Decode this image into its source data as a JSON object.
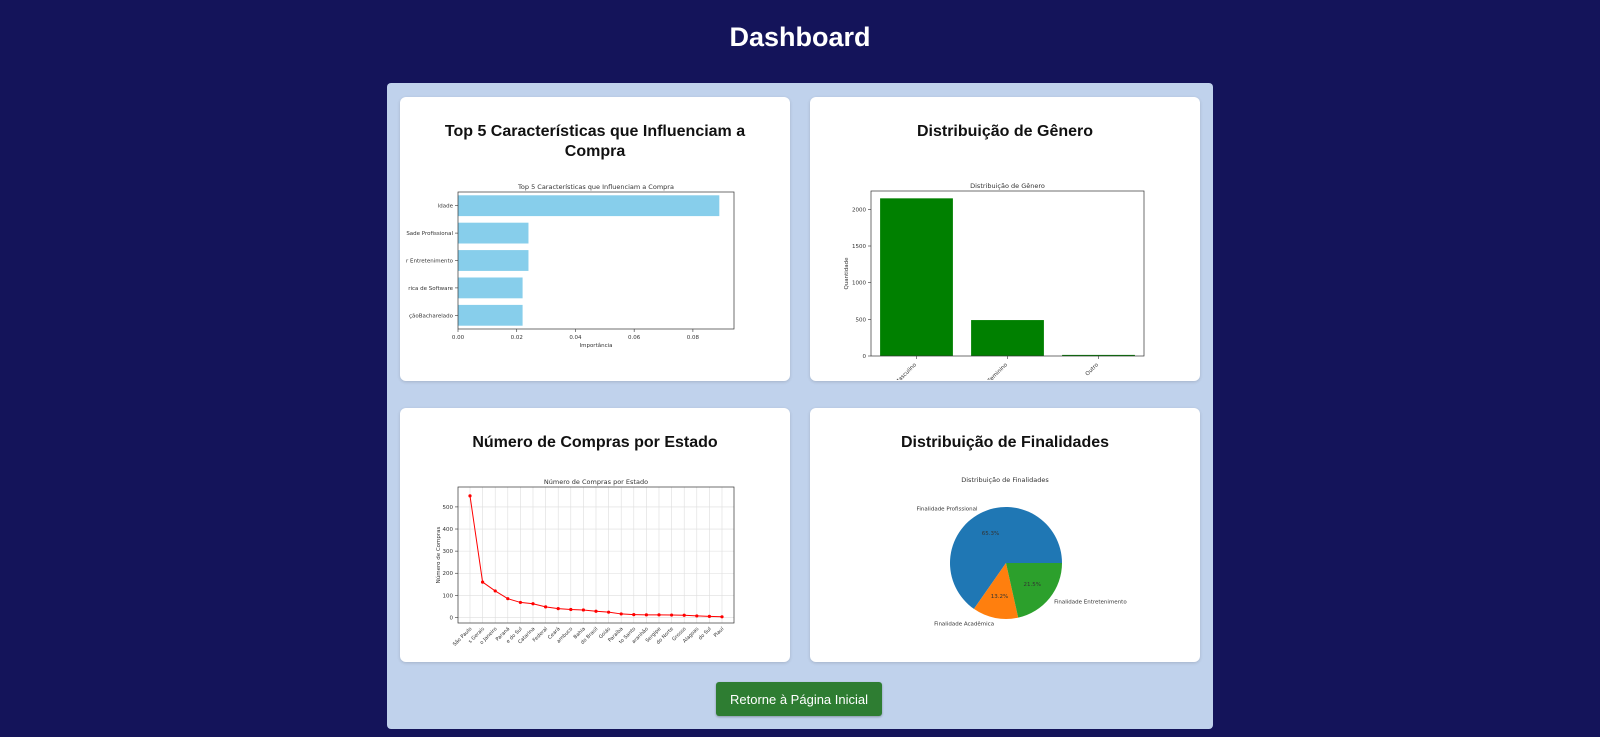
{
  "page": {
    "title": "Dashboard"
  },
  "cards": [
    {
      "title": "Top 5 Características que Influenciam a Compra"
    },
    {
      "title": "Distribuição de Gênero"
    },
    {
      "title": "Número de Compras por Estado"
    },
    {
      "title": "Distribuição de Finalidades"
    }
  ],
  "button": {
    "label": "Retorne à Página Inicial"
  },
  "colors": {
    "bar_blue": "#87ceeb",
    "bar_green": "#008000",
    "line_red": "#ff0000",
    "pie": [
      "#1f77b4",
      "#ff7f0e",
      "#2ca02c"
    ]
  },
  "chart_data": [
    {
      "type": "bar",
      "orientation": "horizontal",
      "title": "Top 5 Características que Influenciam a Compra",
      "xlabel": "Importância",
      "categories": [
        "idade",
        "Finalidade Profissional",
        "Finalidade Entretenimento",
        "Engenharia de Software",
        "Nível: Bacharelado"
      ],
      "category_labels_visible": [
        "ldade",
        "Sade Profissional",
        "r Entretenimento",
        "rica de Software",
        "çãoBacharelado"
      ],
      "values": [
        0.089,
        0.024,
        0.024,
        0.022,
        0.022
      ],
      "xlim": [
        0,
        0.094
      ],
      "xticks": [
        "0.00",
        "0.02",
        "0.04",
        "0.06",
        "0.08"
      ]
    },
    {
      "type": "bar",
      "title": "Distribuição de Gênero",
      "ylabel": "Quantidade",
      "categories": [
        "Masculino",
        "Feminino",
        "Outro"
      ],
      "values": [
        2150,
        490,
        15
      ],
      "ylim": [
        0,
        2250
      ],
      "yticks": [
        "0",
        "500",
        "1000",
        "1500",
        "2000"
      ]
    },
    {
      "type": "line",
      "title": "Número de Compras por Estado",
      "ylabel": "Número de Compras",
      "grid": true,
      "categories": [
        "São Paulo",
        "Minas Gerais",
        "Rio de Janeiro",
        "Paraná",
        "Rio Grande do Sul",
        "Santa Catarina",
        "Distrito Federal",
        "Ceará",
        "Pernambuco",
        "Bahia",
        "Mato Grosso",
        "Goiás",
        "Paraíba",
        "Espírito Santo",
        "Maranhão",
        "Sergipe",
        "Rio Grande do Norte",
        "Mato Grosso do Sul",
        "Alagoas",
        "Amazonas",
        "Piauí"
      ],
      "tick_labels_visible": [
        "São Paulo",
        "s Gerais",
        "o Janeiro",
        "Paraná",
        "e do Sul",
        "Catarina",
        "Federal",
        "Ceará",
        "ambuco",
        "Bahia",
        "do Brasil",
        "Goiás",
        "Paraíba",
        "to Santo",
        "aranhão",
        "Sergipe",
        "do Norte",
        "Grosso",
        "Alagoas",
        "do Sul",
        "Piauí"
      ],
      "values": [
        550,
        160,
        120,
        85,
        68,
        62,
        48,
        40,
        36,
        34,
        28,
        24,
        16,
        13,
        12,
        12,
        11,
        10,
        7,
        5,
        3
      ],
      "ylim": [
        -25,
        590
      ],
      "yticks": [
        "0",
        "100",
        "200",
        "300",
        "400",
        "500"
      ]
    },
    {
      "type": "pie",
      "title": "Distribuição de Finalidades",
      "labels": [
        "Finalidade Profissional",
        "Finalidade Acadêmica",
        "Finalidade Entretenimento"
      ],
      "values": [
        65.3,
        13.2,
        21.5
      ],
      "pct_labels": [
        "65.3%",
        "13.2%",
        "21.5%"
      ]
    }
  ]
}
